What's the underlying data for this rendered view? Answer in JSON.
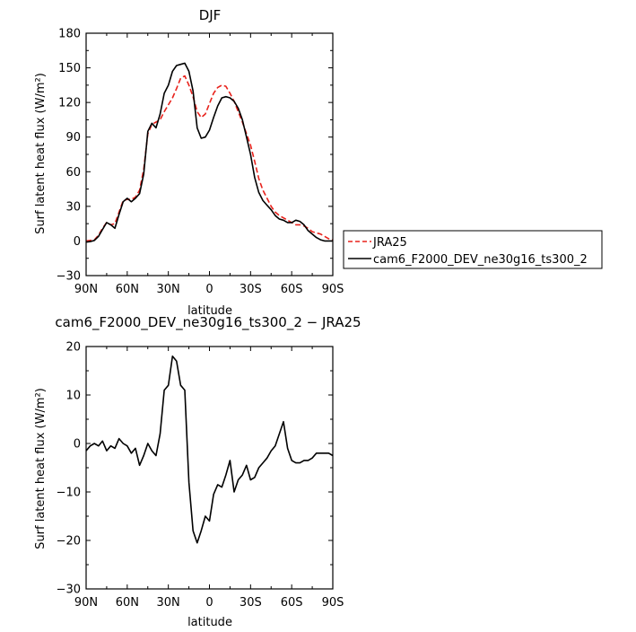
{
  "chart_data": [
    {
      "type": "line",
      "title": "DJF",
      "xlabel": "latitude",
      "ylabel": "Surf latent heat flux (W/m²)",
      "xlim": [
        90,
        -90
      ],
      "ylim": [
        -30,
        180
      ],
      "x_ticks": [
        90,
        60,
        30,
        0,
        -30,
        -60,
        -90
      ],
      "x_tick_labels": [
        "90N",
        "60N",
        "30N",
        "0",
        "30S",
        "60S",
        "90S"
      ],
      "y_ticks": [
        -30,
        0,
        30,
        60,
        90,
        120,
        150,
        180
      ],
      "y_tick_labels": [
        "−30",
        "0",
        "30",
        "60",
        "90",
        "120",
        "150",
        "180"
      ],
      "legend": {
        "placement": "right",
        "entries": [
          "JRA25",
          "cam6_F2000_DEV_ne30g16_ts300_2"
        ]
      },
      "series": [
        {
          "name": "JRA25",
          "color": "#e8221c",
          "dash": "dashed",
          "x": [
            90,
            87,
            84,
            81,
            78,
            75,
            72,
            69,
            66,
            63,
            60,
            57,
            54,
            51,
            48,
            45,
            42,
            39,
            36,
            33,
            30,
            27,
            24,
            21,
            18,
            15,
            12,
            9,
            6,
            3,
            0,
            -3,
            -6,
            -9,
            -12,
            -15,
            -18,
            -21,
            -24,
            -27,
            -30,
            -33,
            -36,
            -39,
            -42,
            -45,
            -48,
            -51,
            -54,
            -57,
            -60,
            -63,
            -66,
            -69,
            -72,
            -75,
            -78,
            -81,
            -84,
            -87,
            -90
          ],
          "y": [
            0,
            0.5,
            1,
            5,
            11,
            16,
            14,
            15,
            25,
            35,
            36,
            36,
            38,
            44,
            62,
            93,
            101,
            103,
            105,
            112,
            118,
            124,
            132,
            141,
            143,
            135,
            125,
            112,
            107,
            110,
            119,
            128,
            133,
            135,
            134,
            128,
            121,
            112,
            103,
            93,
            83,
            69,
            54,
            44,
            37,
            30,
            25,
            22,
            20,
            18,
            16,
            14,
            14,
            13,
            11,
            8,
            7,
            6,
            4,
            2,
            1
          ]
        },
        {
          "name": "cam6_F2000_DEV_ne30g16_ts300_2",
          "color": "#000000",
          "dash": "solid",
          "x": [
            90,
            87,
            84,
            81,
            78,
            75,
            72,
            69,
            66,
            63,
            60,
            57,
            54,
            51,
            48,
            45,
            42,
            39,
            36,
            33,
            30,
            27,
            24,
            21,
            18,
            15,
            12,
            9,
            6,
            3,
            0,
            -3,
            -6,
            -9,
            -12,
            -15,
            -18,
            -21,
            -24,
            -27,
            -30,
            -33,
            -36,
            -39,
            -42,
            -45,
            -48,
            -51,
            -54,
            -57,
            -60,
            -63,
            -66,
            -69,
            -72,
            -75,
            -78,
            -81,
            -84,
            -87,
            -90
          ],
          "y": [
            -1,
            -0.5,
            0.5,
            4,
            10,
            16,
            14,
            11,
            23,
            34,
            37,
            34,
            37,
            41,
            58,
            95,
            102,
            98,
            110,
            128,
            135,
            147,
            152,
            153,
            154,
            147,
            130,
            98,
            89,
            90,
            96,
            107,
            117,
            124,
            125,
            124,
            121,
            115,
            105,
            90,
            75,
            55,
            42,
            35,
            31,
            27,
            22,
            19,
            18,
            16,
            16,
            18,
            17,
            14,
            9,
            6,
            3,
            1,
            0,
            0,
            0
          ]
        }
      ]
    },
    {
      "type": "line",
      "title": "cam6_F2000_DEV_ne30g16_ts300_2 − JRA25",
      "xlabel": "latitude",
      "ylabel": "Surf latent heat flux (W/m²)",
      "xlim": [
        90,
        -90
      ],
      "ylim": [
        -30,
        20
      ],
      "x_ticks": [
        90,
        60,
        30,
        0,
        -30,
        -60,
        -90
      ],
      "x_tick_labels": [
        "90N",
        "60N",
        "30N",
        "0",
        "30S",
        "60S",
        "90S"
      ],
      "y_ticks": [
        -30,
        -20,
        -10,
        0,
        10,
        20
      ],
      "y_tick_labels": [
        "−30",
        "−20",
        "−10",
        "0",
        "10",
        "20"
      ],
      "series": [
        {
          "color": "#000000",
          "dash": "solid",
          "x": [
            90,
            87,
            84,
            81,
            78,
            75,
            72,
            69,
            66,
            63,
            60,
            57,
            54,
            51,
            48,
            45,
            42,
            39,
            36,
            33,
            30,
            27,
            24,
            21,
            18,
            15,
            12,
            9,
            6,
            3,
            0,
            -3,
            -6,
            -9,
            -12,
            -15,
            -18,
            -21,
            -24,
            -27,
            -30,
            -33,
            -36,
            -39,
            -42,
            -45,
            -48,
            -51,
            -54,
            -57,
            -60,
            -63,
            -66,
            -69,
            -72,
            -75,
            -78,
            -81,
            -84,
            -87,
            -90
          ],
          "y": [
            -1.5,
            -0.5,
            0,
            -0.5,
            0.5,
            -1.5,
            -0.5,
            -1,
            1,
            0,
            -0.5,
            -2,
            -1,
            -4.5,
            -2.5,
            0,
            -1.5,
            -2.5,
            2,
            11,
            12,
            18,
            17,
            12,
            11,
            -8,
            -18,
            -20.5,
            -18,
            -15,
            -16,
            -10.5,
            -8.5,
            -9,
            -6.5,
            -3.5,
            -10,
            -7.5,
            -6.5,
            -4.5,
            -7.5,
            -7,
            -5,
            -4,
            -3,
            -1.5,
            -0.5,
            2,
            4.5,
            -1,
            -3.5,
            -4,
            -4,
            -3.5,
            -3.5,
            -3,
            -2,
            -2,
            -2,
            -2,
            -2.5
          ]
        }
      ]
    }
  ]
}
